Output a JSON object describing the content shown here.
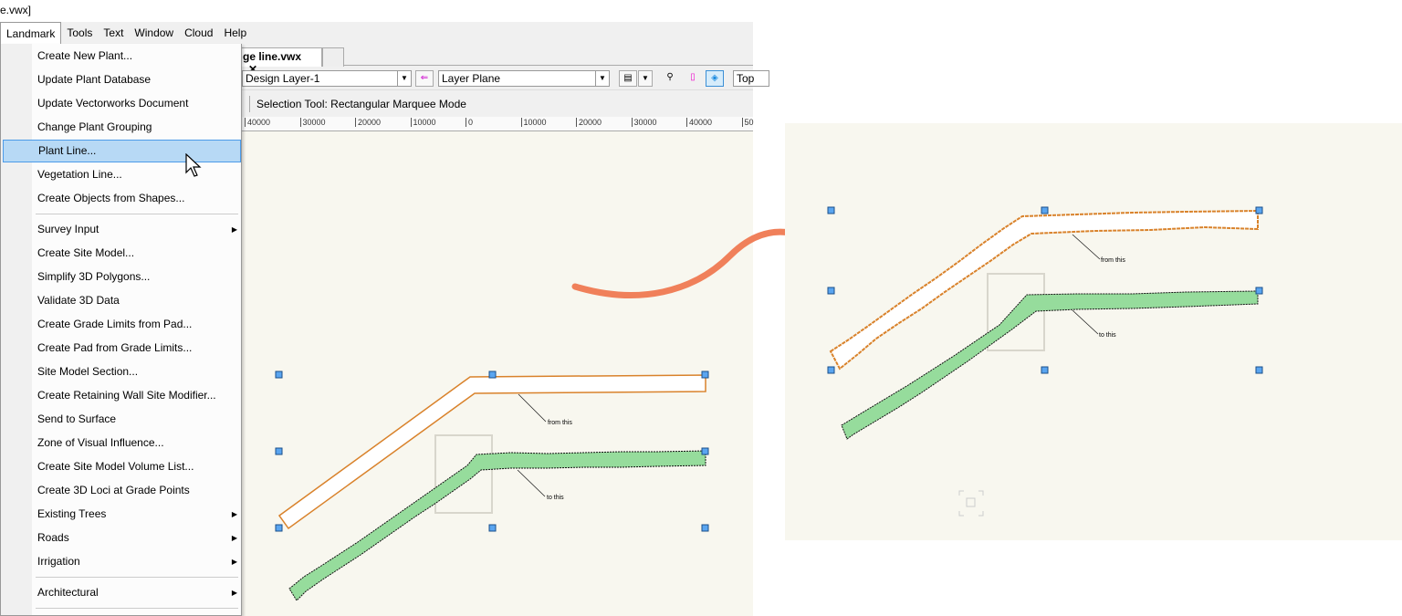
{
  "window": {
    "title_fragment": "e.vwx]"
  },
  "menubar": [
    {
      "label": "Landmark",
      "active": true
    },
    {
      "label": "Tools"
    },
    {
      "label": "Text"
    },
    {
      "label": "Window"
    },
    {
      "label": "Cloud"
    },
    {
      "label": "Help"
    }
  ],
  "document_tab": {
    "label": "ge line.vwx",
    "close": "✕"
  },
  "viewbar": {
    "layer": "Design Layer-1",
    "plane": "Layer Plane",
    "view": "Top"
  },
  "mode_text": "Selection Tool: Rectangular Marquee Mode",
  "ruler_ticks": [
    "40000",
    "30000",
    "20000",
    "10000",
    "0",
    "10000",
    "20000",
    "30000",
    "40000",
    "50"
  ],
  "menu": {
    "items": [
      {
        "label": "Create New Plant..."
      },
      {
        "label": "Update Plant Database"
      },
      {
        "label": "Update Vectorworks Document"
      },
      {
        "label": "Change Plant Grouping"
      },
      {
        "label": "Plant Line...",
        "highlighted": true
      },
      {
        "label": "Vegetation Line..."
      },
      {
        "label": "Create Objects from Shapes..."
      },
      {
        "separator": true
      },
      {
        "label": "Survey Input",
        "submenu": true
      },
      {
        "label": "Create Site Model..."
      },
      {
        "label": "Simplify 3D Polygons..."
      },
      {
        "label": "Validate 3D Data"
      },
      {
        "label": "Create Grade Limits from Pad..."
      },
      {
        "label": "Create Pad from Grade Limits..."
      },
      {
        "label": "Site Model Section..."
      },
      {
        "label": "Create Retaining Wall Site Modifier..."
      },
      {
        "label": "Send to Surface"
      },
      {
        "label": "Zone of Visual Influence..."
      },
      {
        "label": "Create Site Model Volume List..."
      },
      {
        "label": "Create 3D Loci at Grade Points"
      },
      {
        "label": "Existing Trees",
        "submenu": true
      },
      {
        "label": "Roads",
        "submenu": true
      },
      {
        "label": "Irrigation",
        "submenu": true
      },
      {
        "separator": true
      },
      {
        "label": "Architectural",
        "submenu": true
      },
      {
        "separator": true
      }
    ]
  },
  "annotations": {
    "from": "from this",
    "to": "to this"
  },
  "colors": {
    "canvas": "#f8f7ef",
    "plant_fill": "#96dc9c",
    "outline": "#d9822b",
    "arrow": "#f0805a",
    "handle": "#5aa5f0",
    "highlight": "#b7d9f5"
  }
}
